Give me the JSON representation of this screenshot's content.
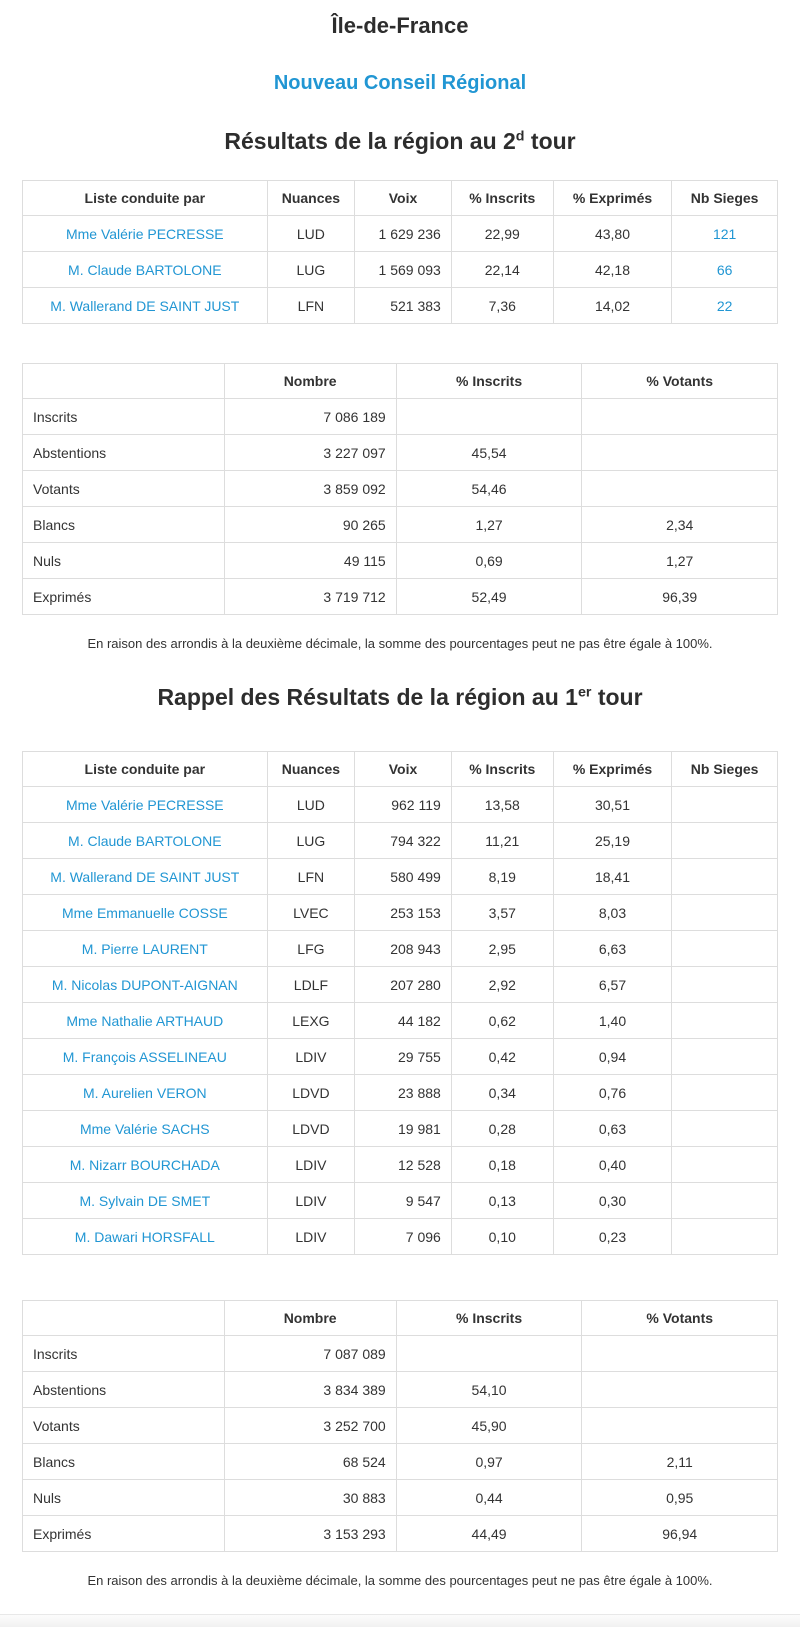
{
  "page": {
    "region_title": "Île-de-France",
    "subtitle": "Nouveau Conseil Régional",
    "round2_heading": {
      "prefix": "Résultats de la région au 2",
      "sup": "d",
      "suffix": " tour"
    },
    "round1_heading": {
      "prefix": "Rappel des Résultats de la région au 1",
      "sup": "er",
      "suffix": " tour"
    },
    "rounding_note": "En raison des arrondis à la deuxième décimale, la somme des pourcentages peut ne pas être égale à 100%."
  },
  "colors": {
    "link_blue": "#2196d3",
    "text": "#333333",
    "table_border": "#dddddd",
    "footer_bg": "#f1f1f1"
  },
  "results_round2": {
    "headers": [
      "Liste conduite par",
      "Nuances",
      "Voix",
      "% Inscrits",
      "% Exprimés",
      "Nb Sieges"
    ],
    "rows": [
      {
        "name": "Mme Valérie PECRESSE",
        "nuance": "LUD",
        "voix": "1 629 236",
        "pct_inscrits": "22,99",
        "pct_exprimes": "43,80",
        "sieges": "121"
      },
      {
        "name": "M. Claude BARTOLONE",
        "nuance": "LUG",
        "voix": "1 569 093",
        "pct_inscrits": "22,14",
        "pct_exprimes": "42,18",
        "sieges": "66"
      },
      {
        "name": "M. Wallerand DE SAINT JUST",
        "nuance": "LFN",
        "voix": "521 383",
        "pct_inscrits": "7,36",
        "pct_exprimes": "14,02",
        "sieges": "22"
      }
    ]
  },
  "stats_round2": {
    "headers": [
      "",
      "Nombre",
      "% Inscrits",
      "% Votants"
    ],
    "rows": [
      {
        "label": "Inscrits",
        "nombre": "7 086 189",
        "pct_inscrits": "",
        "pct_votants": ""
      },
      {
        "label": "Abstentions",
        "nombre": "3 227 097",
        "pct_inscrits": "45,54",
        "pct_votants": ""
      },
      {
        "label": "Votants",
        "nombre": "3 859 092",
        "pct_inscrits": "54,46",
        "pct_votants": ""
      },
      {
        "label": "Blancs",
        "nombre": "90 265",
        "pct_inscrits": "1,27",
        "pct_votants": "2,34"
      },
      {
        "label": "Nuls",
        "nombre": "49 115",
        "pct_inscrits": "0,69",
        "pct_votants": "1,27"
      },
      {
        "label": "Exprimés",
        "nombre": "3 719 712",
        "pct_inscrits": "52,49",
        "pct_votants": "96,39"
      }
    ]
  },
  "results_round1": {
    "headers": [
      "Liste conduite par",
      "Nuances",
      "Voix",
      "% Inscrits",
      "% Exprimés",
      "Nb Sieges"
    ],
    "rows": [
      {
        "name": "Mme Valérie PECRESSE",
        "nuance": "LUD",
        "voix": "962 119",
        "pct_inscrits": "13,58",
        "pct_exprimes": "30,51",
        "sieges": ""
      },
      {
        "name": "M. Claude BARTOLONE",
        "nuance": "LUG",
        "voix": "794 322",
        "pct_inscrits": "11,21",
        "pct_exprimes": "25,19",
        "sieges": ""
      },
      {
        "name": "M. Wallerand DE SAINT JUST",
        "nuance": "LFN",
        "voix": "580 499",
        "pct_inscrits": "8,19",
        "pct_exprimes": "18,41",
        "sieges": ""
      },
      {
        "name": "Mme Emmanuelle COSSE",
        "nuance": "LVEC",
        "voix": "253 153",
        "pct_inscrits": "3,57",
        "pct_exprimes": "8,03",
        "sieges": ""
      },
      {
        "name": "M. Pierre LAURENT",
        "nuance": "LFG",
        "voix": "208 943",
        "pct_inscrits": "2,95",
        "pct_exprimes": "6,63",
        "sieges": ""
      },
      {
        "name": "M. Nicolas DUPONT-AIGNAN",
        "nuance": "LDLF",
        "voix": "207 280",
        "pct_inscrits": "2,92",
        "pct_exprimes": "6,57",
        "sieges": ""
      },
      {
        "name": "Mme Nathalie ARTHAUD",
        "nuance": "LEXG",
        "voix": "44 182",
        "pct_inscrits": "0,62",
        "pct_exprimes": "1,40",
        "sieges": ""
      },
      {
        "name": "M. François ASSELINEAU",
        "nuance": "LDIV",
        "voix": "29 755",
        "pct_inscrits": "0,42",
        "pct_exprimes": "0,94",
        "sieges": ""
      },
      {
        "name": "M. Aurelien VERON",
        "nuance": "LDVD",
        "voix": "23 888",
        "pct_inscrits": "0,34",
        "pct_exprimes": "0,76",
        "sieges": ""
      },
      {
        "name": "Mme Valérie SACHS",
        "nuance": "LDVD",
        "voix": "19 981",
        "pct_inscrits": "0,28",
        "pct_exprimes": "0,63",
        "sieges": ""
      },
      {
        "name": "M. Nizarr BOURCHADA",
        "nuance": "LDIV",
        "voix": "12 528",
        "pct_inscrits": "0,18",
        "pct_exprimes": "0,40",
        "sieges": ""
      },
      {
        "name": "M. Sylvain DE SMET",
        "nuance": "LDIV",
        "voix": "9 547",
        "pct_inscrits": "0,13",
        "pct_exprimes": "0,30",
        "sieges": ""
      },
      {
        "name": "M. Dawari HORSFALL",
        "nuance": "LDIV",
        "voix": "7 096",
        "pct_inscrits": "0,10",
        "pct_exprimes": "0,23",
        "sieges": ""
      }
    ]
  },
  "stats_round1": {
    "headers": [
      "",
      "Nombre",
      "% Inscrits",
      "% Votants"
    ],
    "rows": [
      {
        "label": "Inscrits",
        "nombre": "7 087 089",
        "pct_inscrits": "",
        "pct_votants": ""
      },
      {
        "label": "Abstentions",
        "nombre": "3 834 389",
        "pct_inscrits": "54,10",
        "pct_votants": ""
      },
      {
        "label": "Votants",
        "nombre": "3 252 700",
        "pct_inscrits": "45,90",
        "pct_votants": ""
      },
      {
        "label": "Blancs",
        "nombre": "68 524",
        "pct_inscrits": "0,97",
        "pct_votants": "2,11"
      },
      {
        "label": "Nuls",
        "nombre": "30 883",
        "pct_inscrits": "0,44",
        "pct_votants": "0,95"
      },
      {
        "label": "Exprimés",
        "nombre": "3 153 293",
        "pct_inscrits": "44,49",
        "pct_votants": "96,94"
      }
    ]
  }
}
